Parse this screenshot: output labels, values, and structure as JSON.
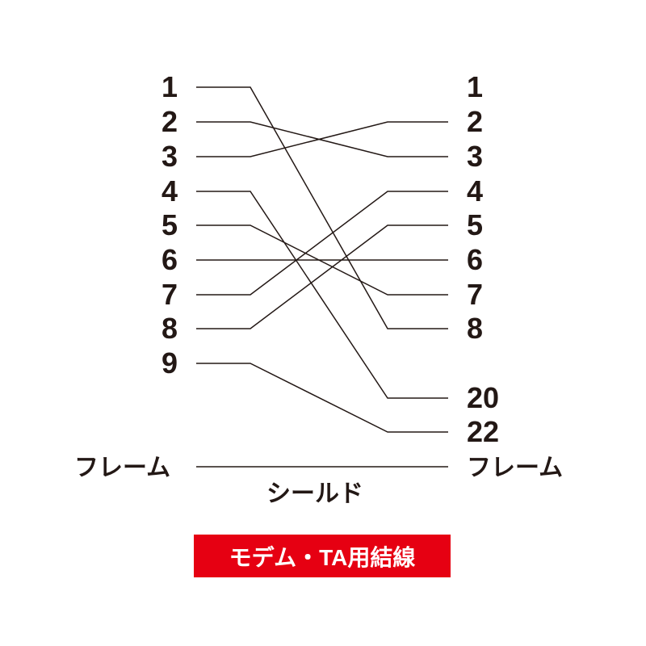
{
  "left_pins": [
    "1",
    "2",
    "3",
    "4",
    "5",
    "6",
    "7",
    "8",
    "9"
  ],
  "right_pins": [
    "1",
    "2",
    "3",
    "4",
    "5",
    "6",
    "7",
    "8",
    "20",
    "22"
  ],
  "frame_label_left": "フレーム",
  "frame_label_right": "フレーム",
  "shield_label": "シールド",
  "badge_label": "モデム・TA用結線",
  "connections": [
    {
      "from": "1",
      "to": "8"
    },
    {
      "from": "2",
      "to": "3"
    },
    {
      "from": "3",
      "to": "2"
    },
    {
      "from": "4",
      "to": "20"
    },
    {
      "from": "5",
      "to": "7"
    },
    {
      "from": "6",
      "to": "6"
    },
    {
      "from": "7",
      "to": "4"
    },
    {
      "from": "8",
      "to": "5"
    },
    {
      "from": "9",
      "to": "22"
    },
    {
      "from": "フレーム",
      "to": "フレーム"
    }
  ],
  "colors": {
    "line": "#231815",
    "badge": "#e60012"
  }
}
